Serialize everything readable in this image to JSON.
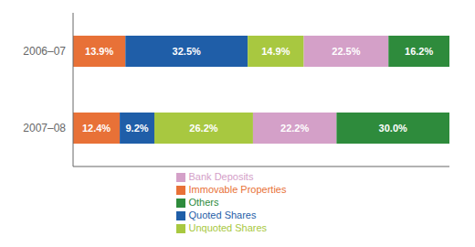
{
  "chart_data": {
    "type": "bar",
    "orientation": "horizontal",
    "stacked": true,
    "data_labels": true,
    "grid": false,
    "legend": "lower center",
    "tick_labels": "y",
    "categories": [
      "2006–07",
      "2007–08"
    ],
    "xlim": [
      0,
      100
    ],
    "series": [
      {
        "name": "Immovable Properties",
        "color": "#E87137",
        "values": [
          13.9,
          12.4
        ],
        "value_labels": [
          "13.9%",
          "12.4%"
        ]
      },
      {
        "name": "Quoted Shares",
        "color": "#1F5EA8",
        "values": [
          32.5,
          9.2
        ],
        "value_labels": [
          "32.5%",
          "9.2%"
        ]
      },
      {
        "name": "Unquoted Shares",
        "color": "#A8C840",
        "values": [
          14.9,
          26.2
        ],
        "value_labels": [
          "14.9%",
          "26.2%"
        ]
      },
      {
        "name": "Bank Deposits",
        "color": "#D4A0C8",
        "values": [
          22.5,
          22.2
        ],
        "value_labels": [
          "22.5%",
          "22.2%"
        ]
      },
      {
        "name": "Others",
        "color": "#2E8B3C",
        "values": [
          16.2,
          30.0
        ],
        "value_labels": [
          "16.2%",
          "30.0%"
        ]
      }
    ]
  }
}
